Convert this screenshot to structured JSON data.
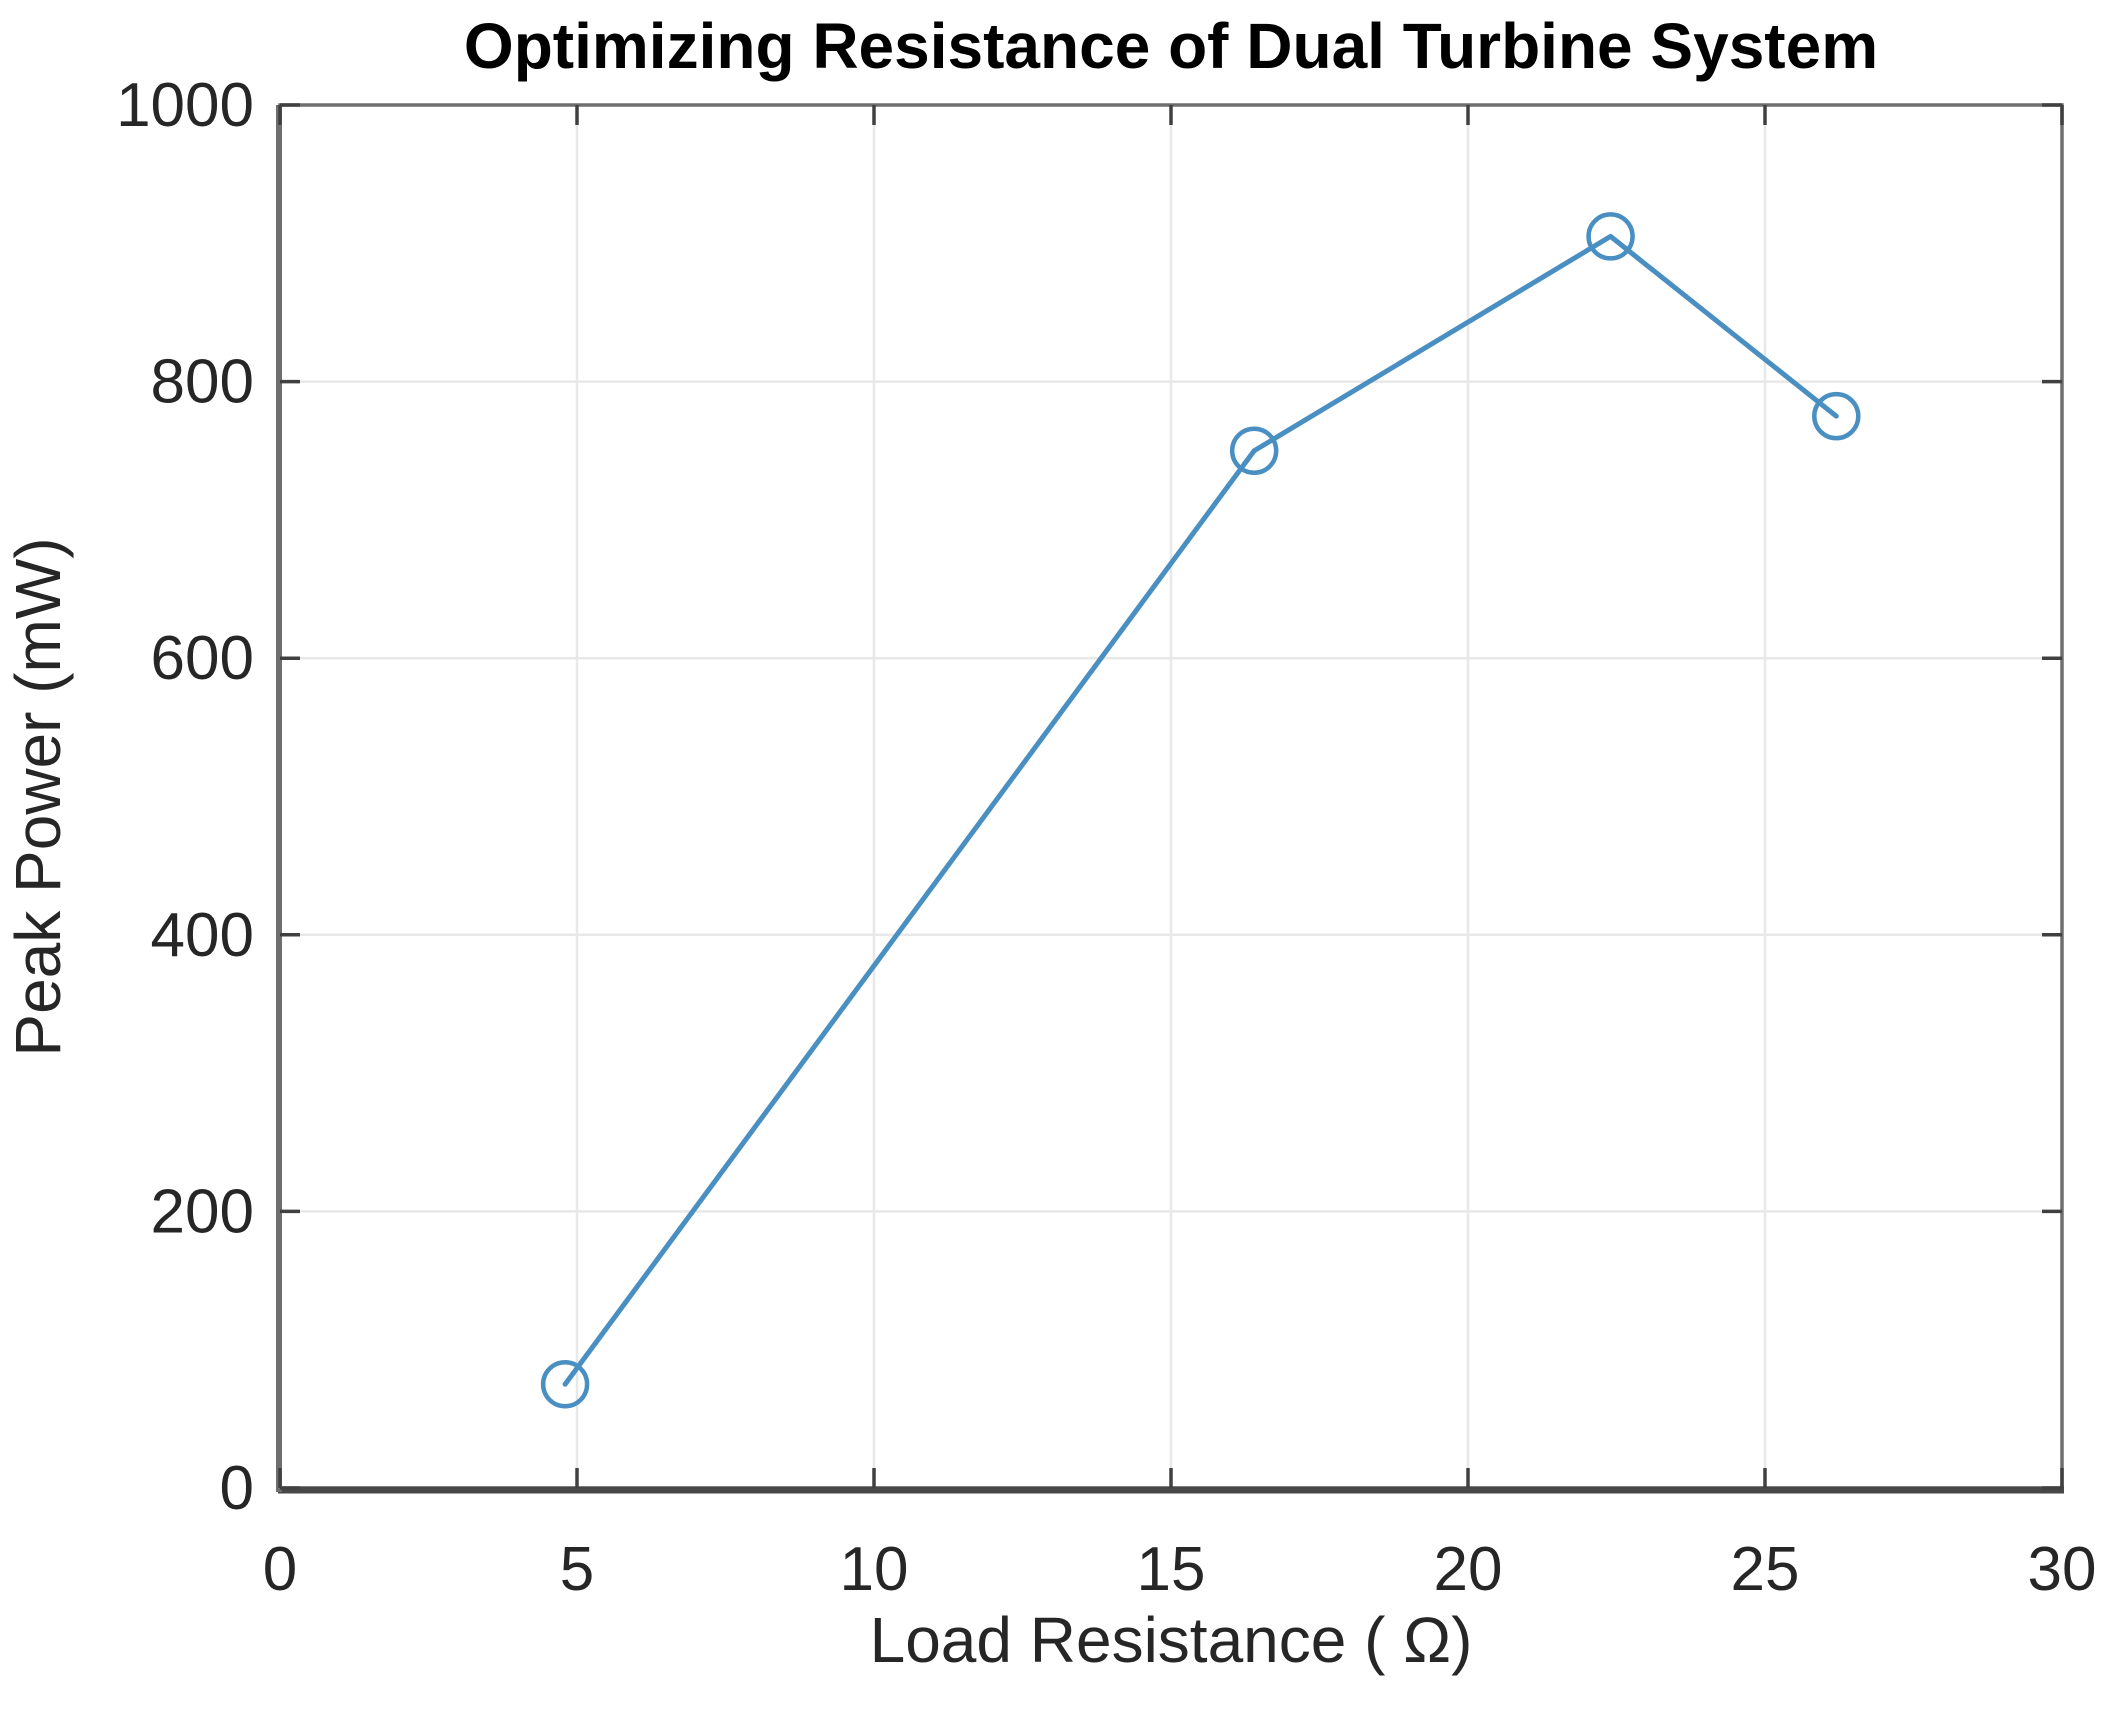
{
  "chart_data": {
    "type": "line",
    "title": "Optimizing Resistance of Dual Turbine System",
    "xlabel": "Load Resistance ( Ω)",
    "ylabel": "Peak Power (mW)",
    "series": [
      {
        "name": "Peak Power",
        "x": [
          4.8,
          16.4,
          22.4,
          26.2
        ],
        "y": [
          75,
          750,
          905,
          775
        ]
      }
    ],
    "xlim": [
      0,
      30
    ],
    "ylim": [
      0,
      1000
    ],
    "xticks": [
      0,
      5,
      10,
      15,
      20,
      25,
      30
    ],
    "yticks": [
      0,
      200,
      400,
      600,
      800,
      1000
    ],
    "grid": true,
    "legend_position": "none",
    "marker": "open-circle",
    "colors": {
      "line": "#4a8fc2",
      "grid": "#e8e8e8",
      "frame": "#6e6e6e",
      "axis_bottom": "#474747",
      "tick": "#404040",
      "tick_text": "#262626",
      "title_text": "#000000",
      "background": "#ffffff"
    }
  }
}
